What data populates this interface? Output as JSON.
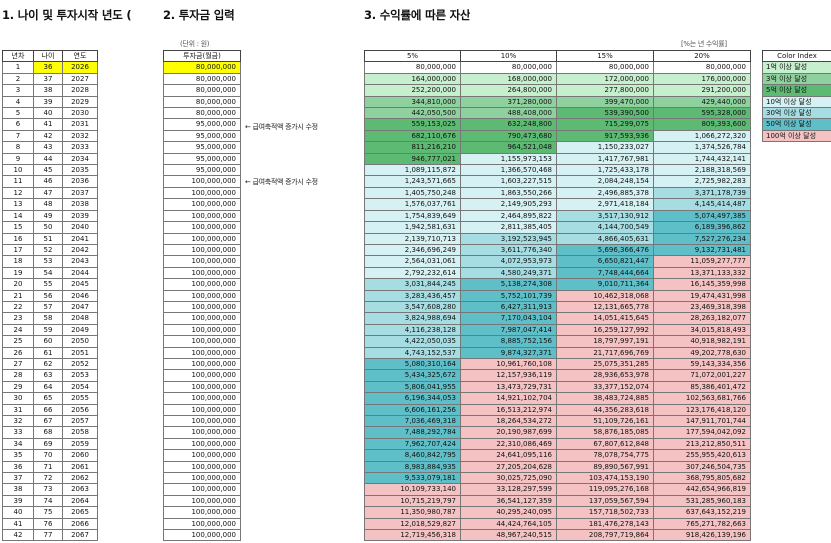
{
  "titles": {
    "t1": "1. 나이 및 투자시작 년도 (",
    "t2": "2. 투자금 입력",
    "t3": "3. 수익률에 따른 자산"
  },
  "notes": {
    "unit": "(단위 : 원)",
    "rate_unit": "[%는 년 수익률]",
    "raise_note": "← 급여축적액 증가시 수정"
  },
  "age_headers": [
    "년차",
    "나이",
    "연도"
  ],
  "invest_header": "투자금(월금)",
  "rate_headers": [
    "5%",
    "10%",
    "15%",
    "20%"
  ],
  "legend": {
    "title": "Color Index",
    "items": [
      {
        "label": "1억 이상 달성",
        "color": "#c6efce"
      },
      {
        "label": "3억 이상 달성",
        "color": "#8fd19e"
      },
      {
        "label": "5억 이상 달성",
        "color": "#5cba73"
      },
      {
        "label": "10억 이상 달성",
        "color": "#d6f1f3"
      },
      {
        "label": "30억 이상 달성",
        "color": "#a5dde3"
      },
      {
        "label": "50억 이상 달성",
        "color": "#5fbfc9"
      },
      {
        "label": "100억 이상 달성",
        "color": "#f4c2c2"
      }
    ]
  },
  "colors": {
    "none": "#ffffff",
    "g1": "#c6efce",
    "g3": "#8fd19e",
    "g5": "#5cba73",
    "b10": "#d6f1f3",
    "b30": "#a5dde3",
    "b50": "#5fbfc9",
    "r100": "#f4c2c2",
    "highlight": "#ffff00"
  },
  "rows": [
    {
      "n": "1",
      "age": "36",
      "year": "2026",
      "inv": "80,000,000",
      "v": [
        "80,000,000",
        "80,000,000",
        "80,000,000",
        "80,000,000"
      ],
      "c": [
        "none",
        "none",
        "none",
        "none"
      ]
    },
    {
      "n": "2",
      "age": "37",
      "year": "2027",
      "inv": "80,000,000",
      "v": [
        "164,000,000",
        "168,000,000",
        "172,000,000",
        "176,000,000"
      ],
      "c": [
        "g1",
        "g1",
        "g1",
        "g1"
      ]
    },
    {
      "n": "3",
      "age": "38",
      "year": "2028",
      "inv": "80,000,000",
      "v": [
        "252,200,000",
        "264,800,000",
        "277,800,000",
        "291,200,000"
      ],
      "c": [
        "g1",
        "g1",
        "g1",
        "g1"
      ]
    },
    {
      "n": "4",
      "age": "39",
      "year": "2029",
      "inv": "80,000,000",
      "v": [
        "344,810,000",
        "371,280,000",
        "399,470,000",
        "429,440,000"
      ],
      "c": [
        "g3",
        "g3",
        "g3",
        "g3"
      ]
    },
    {
      "n": "5",
      "age": "40",
      "year": "2030",
      "inv": "80,000,000",
      "v": [
        "442,050,500",
        "488,408,000",
        "539,390,500",
        "595,328,000"
      ],
      "c": [
        "g3",
        "g3",
        "g5",
        "g5"
      ],
      "rc": "raise"
    },
    {
      "n": "6",
      "age": "41",
      "year": "2031",
      "inv": "95,000,000",
      "v": [
        "559,153,025",
        "632,248,800",
        "715,299,075",
        "809,393,600"
      ],
      "c": [
        "g5",
        "g5",
        "g5",
        "g5"
      ],
      "note": true
    },
    {
      "n": "7",
      "age": "42",
      "year": "2032",
      "inv": "95,000,000",
      "v": [
        "682,110,676",
        "790,473,680",
        "917,593,936",
        "1,066,272,320"
      ],
      "c": [
        "g5",
        "g5",
        "g5",
        "b10"
      ]
    },
    {
      "n": "8",
      "age": "43",
      "year": "2033",
      "inv": "95,000,000",
      "v": [
        "811,216,210",
        "964,521,048",
        "1,150,233,027",
        "1,374,526,784"
      ],
      "c": [
        "g5",
        "g5",
        "b10",
        "b10"
      ]
    },
    {
      "n": "9",
      "age": "44",
      "year": "2034",
      "inv": "95,000,000",
      "v": [
        "946,777,021",
        "1,155,973,153",
        "1,417,767,981",
        "1,744,432,141"
      ],
      "c": [
        "g5",
        "b10",
        "b10",
        "b10"
      ]
    },
    {
      "n": "10",
      "age": "45",
      "year": "2035",
      "inv": "95,000,000",
      "v": [
        "1,089,115,872",
        "1,366,570,468",
        "1,725,433,178",
        "2,188,318,569"
      ],
      "c": [
        "b10",
        "b10",
        "b10",
        "b10"
      ]
    },
    {
      "n": "11",
      "age": "46",
      "year": "2036",
      "inv": "100,000,000",
      "v": [
        "1,243,571,665",
        "1,603,227,515",
        "2,084,248,154",
        "2,725,982,283"
      ],
      "c": [
        "b10",
        "b10",
        "b10",
        "b10"
      ],
      "note": true
    },
    {
      "n": "12",
      "age": "47",
      "year": "2037",
      "inv": "100,000,000",
      "v": [
        "1,405,750,248",
        "1,863,550,266",
        "2,496,885,378",
        "3,371,178,739"
      ],
      "c": [
        "b10",
        "b10",
        "b10",
        "b30"
      ]
    },
    {
      "n": "13",
      "age": "48",
      "year": "2038",
      "inv": "100,000,000",
      "v": [
        "1,576,037,761",
        "2,149,905,293",
        "2,971,418,184",
        "4,145,414,487"
      ],
      "c": [
        "b10",
        "b10",
        "b10",
        "b30"
      ]
    },
    {
      "n": "14",
      "age": "49",
      "year": "2039",
      "inv": "100,000,000",
      "v": [
        "1,754,839,649",
        "2,464,895,822",
        "3,517,130,912",
        "5,074,497,385"
      ],
      "c": [
        "b10",
        "b10",
        "b30",
        "b50"
      ]
    },
    {
      "n": "15",
      "age": "50",
      "year": "2040",
      "inv": "100,000,000",
      "v": [
        "1,942,581,631",
        "2,811,385,405",
        "4,144,700,549",
        "6,189,396,862"
      ],
      "c": [
        "b10",
        "b10",
        "b30",
        "b50"
      ]
    },
    {
      "n": "16",
      "age": "51",
      "year": "2041",
      "inv": "100,000,000",
      "v": [
        "2,139,710,713",
        "3,192,523,945",
        "4,866,405,631",
        "7,527,276,234"
      ],
      "c": [
        "b10",
        "b30",
        "b30",
        "b50"
      ]
    },
    {
      "n": "17",
      "age": "52",
      "year": "2042",
      "inv": "100,000,000",
      "v": [
        "2,346,696,249",
        "3,611,776,340",
        "5,696,366,476",
        "9,132,731,481"
      ],
      "c": [
        "b10",
        "b30",
        "b50",
        "b50"
      ]
    },
    {
      "n": "18",
      "age": "53",
      "year": "2043",
      "inv": "100,000,000",
      "v": [
        "2,564,031,061",
        "4,072,953,973",
        "6,650,821,447",
        "11,059,277,777"
      ],
      "c": [
        "b10",
        "b30",
        "b50",
        "r100"
      ]
    },
    {
      "n": "19",
      "age": "54",
      "year": "2044",
      "inv": "100,000,000",
      "v": [
        "2,792,232,614",
        "4,580,249,371",
        "7,748,444,664",
        "13,371,133,332"
      ],
      "c": [
        "b10",
        "b30",
        "b50",
        "r100"
      ]
    },
    {
      "n": "20",
      "age": "55",
      "year": "2045",
      "inv": "100,000,000",
      "v": [
        "3,031,844,245",
        "5,138,274,308",
        "9,010,711,364",
        "16,145,359,998"
      ],
      "c": [
        "b30",
        "b50",
        "b50",
        "r100"
      ]
    },
    {
      "n": "21",
      "age": "56",
      "year": "2046",
      "inv": "100,000,000",
      "v": [
        "3,283,436,457",
        "5,752,101,739",
        "10,462,318,068",
        "19,474,431,998"
      ],
      "c": [
        "b30",
        "b50",
        "r100",
        "r100"
      ]
    },
    {
      "n": "22",
      "age": "57",
      "year": "2047",
      "inv": "100,000,000",
      "v": [
        "3,547,608,280",
        "6,427,311,913",
        "12,131,665,778",
        "23,469,318,398"
      ],
      "c": [
        "b30",
        "b50",
        "r100",
        "r100"
      ]
    },
    {
      "n": "23",
      "age": "58",
      "year": "2048",
      "inv": "100,000,000",
      "v": [
        "3,824,988,694",
        "7,170,043,104",
        "14,051,415,645",
        "28,263,182,077"
      ],
      "c": [
        "b30",
        "b50",
        "r100",
        "r100"
      ]
    },
    {
      "n": "24",
      "age": "59",
      "year": "2049",
      "inv": "100,000,000",
      "v": [
        "4,116,238,128",
        "7,987,047,414",
        "16,259,127,992",
        "34,015,818,493"
      ],
      "c": [
        "b30",
        "b50",
        "r100",
        "r100"
      ]
    },
    {
      "n": "25",
      "age": "60",
      "year": "2050",
      "inv": "100,000,000",
      "v": [
        "4,422,050,035",
        "8,885,752,156",
        "18,797,997,191",
        "40,918,982,191"
      ],
      "c": [
        "b30",
        "b50",
        "r100",
        "r100"
      ]
    },
    {
      "n": "26",
      "age": "61",
      "year": "2051",
      "inv": "100,000,000",
      "v": [
        "4,743,152,537",
        "9,874,327,371",
        "21,717,696,769",
        "49,202,778,630"
      ],
      "c": [
        "b30",
        "b50",
        "r100",
        "r100"
      ]
    },
    {
      "n": "27",
      "age": "62",
      "year": "2052",
      "inv": "100,000,000",
      "v": [
        "5,080,310,164",
        "10,961,760,108",
        "25,075,351,285",
        "59,143,334,356"
      ],
      "c": [
        "b50",
        "r100",
        "r100",
        "r100"
      ]
    },
    {
      "n": "28",
      "age": "63",
      "year": "2053",
      "inv": "100,000,000",
      "v": [
        "5,434,325,672",
        "12,157,936,119",
        "28,936,653,978",
        "71,072,001,227"
      ],
      "c": [
        "b50",
        "r100",
        "r100",
        "r100"
      ]
    },
    {
      "n": "29",
      "age": "64",
      "year": "2054",
      "inv": "100,000,000",
      "v": [
        "5,806,041,955",
        "13,473,729,731",
        "33,377,152,074",
        "85,386,401,472"
      ],
      "c": [
        "b50",
        "r100",
        "r100",
        "r100"
      ]
    },
    {
      "n": "30",
      "age": "65",
      "year": "2055",
      "inv": "100,000,000",
      "v": [
        "6,196,344,053",
        "14,921,102,704",
        "38,483,724,885",
        "102,563,681,766"
      ],
      "c": [
        "b50",
        "r100",
        "r100",
        "r100"
      ]
    },
    {
      "n": "31",
      "age": "66",
      "year": "2056",
      "inv": "100,000,000",
      "v": [
        "6,606,161,256",
        "16,513,212,974",
        "44,356,283,618",
        "123,176,418,120"
      ],
      "c": [
        "b50",
        "r100",
        "r100",
        "r100"
      ]
    },
    {
      "n": "32",
      "age": "67",
      "year": "2057",
      "inv": "100,000,000",
      "v": [
        "7,036,469,318",
        "18,264,534,272",
        "51,109,726,161",
        "147,911,701,744"
      ],
      "c": [
        "b50",
        "r100",
        "r100",
        "r100"
      ]
    },
    {
      "n": "33",
      "age": "68",
      "year": "2058",
      "inv": "100,000,000",
      "v": [
        "7,488,292,784",
        "20,190,987,699",
        "58,876,185,085",
        "177,594,042,092"
      ],
      "c": [
        "b50",
        "r100",
        "r100",
        "r100"
      ]
    },
    {
      "n": "34",
      "age": "69",
      "year": "2059",
      "inv": "100,000,000",
      "v": [
        "7,962,707,424",
        "22,310,086,469",
        "67,807,612,848",
        "213,212,850,511"
      ],
      "c": [
        "b50",
        "r100",
        "r100",
        "r100"
      ]
    },
    {
      "n": "35",
      "age": "70",
      "year": "2060",
      "inv": "100,000,000",
      "v": [
        "8,460,842,795",
        "24,641,095,116",
        "78,078,754,775",
        "255,955,420,613"
      ],
      "c": [
        "b50",
        "r100",
        "r100",
        "r100"
      ]
    },
    {
      "n": "36",
      "age": "71",
      "year": "2061",
      "inv": "100,000,000",
      "v": [
        "8,983,884,935",
        "27,205,204,628",
        "89,890,567,991",
        "307,246,504,735"
      ],
      "c": [
        "b50",
        "r100",
        "r100",
        "r100"
      ]
    },
    {
      "n": "37",
      "age": "72",
      "year": "2062",
      "inv": "100,000,000",
      "v": [
        "9,533,079,181",
        "30,025,725,090",
        "103,474,153,190",
        "368,795,805,682"
      ],
      "c": [
        "b50",
        "r100",
        "r100",
        "r100"
      ]
    },
    {
      "n": "38",
      "age": "73",
      "year": "2063",
      "inv": "100,000,000",
      "v": [
        "10,109,733,140",
        "33,128,297,599",
        "119,095,276,168",
        "442,654,966,819"
      ],
      "c": [
        "r100",
        "r100",
        "r100",
        "r100"
      ]
    },
    {
      "n": "39",
      "age": "74",
      "year": "2064",
      "inv": "100,000,000",
      "v": [
        "10,715,219,797",
        "36,541,127,359",
        "137,059,567,594",
        "531,285,960,183"
      ],
      "c": [
        "r100",
        "r100",
        "r100",
        "r100"
      ]
    },
    {
      "n": "40",
      "age": "75",
      "year": "2065",
      "inv": "100,000,000",
      "v": [
        "11,350,980,787",
        "40,295,240,095",
        "157,718,502,733",
        "637,643,152,219"
      ],
      "c": [
        "r100",
        "r100",
        "r100",
        "r100"
      ]
    },
    {
      "n": "41",
      "age": "76",
      "year": "2066",
      "inv": "100,000,000",
      "v": [
        "12,018,529,827",
        "44,424,764,105",
        "181,476,278,143",
        "765,271,782,663"
      ],
      "c": [
        "r100",
        "r100",
        "r100",
        "r100"
      ]
    },
    {
      "n": "42",
      "age": "77",
      "year": "2067",
      "inv": "100,000,000",
      "v": [
        "12,719,456,318",
        "48,967,240,515",
        "208,797,719,864",
        "918,426,139,196"
      ],
      "c": [
        "r100",
        "r100",
        "r100",
        "r100"
      ]
    }
  ]
}
